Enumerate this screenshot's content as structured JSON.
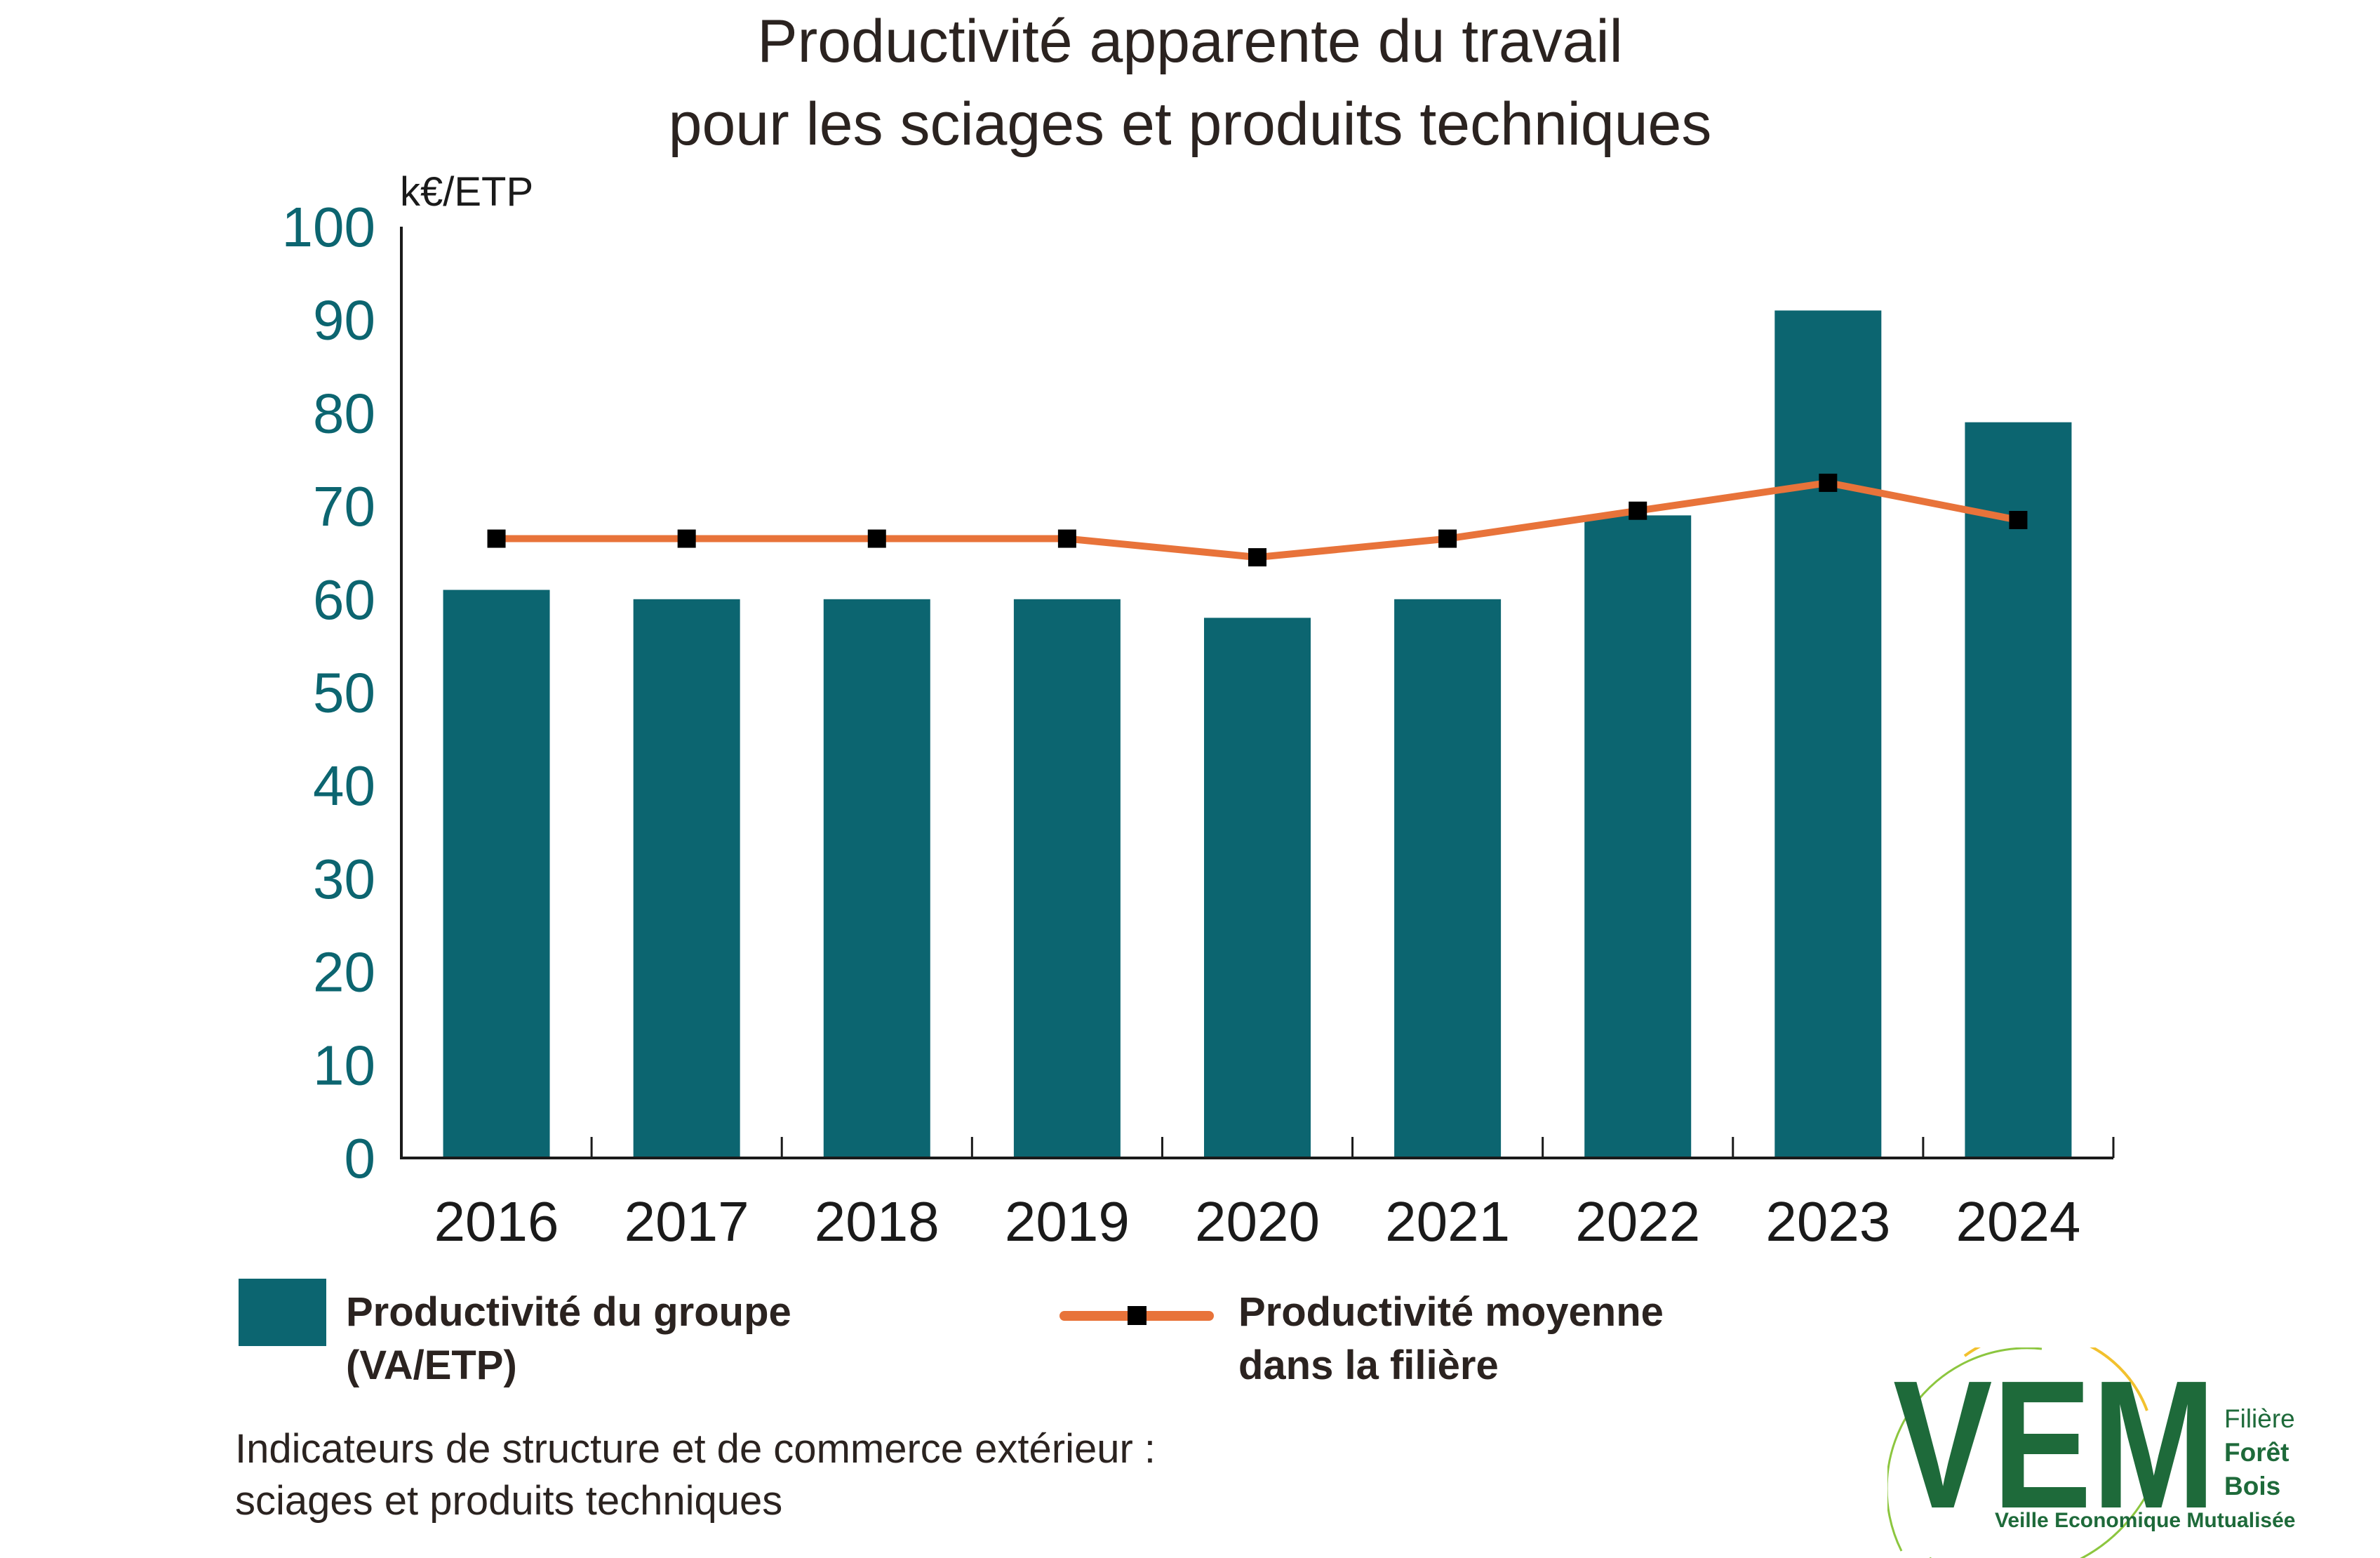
{
  "chart_data": {
    "type": "bar",
    "title": [
      "Productivité apparente du travail",
      "pour les sciages et produits techniques"
    ],
    "ylabel": "k€/ETP",
    "ylim": [
      0,
      100
    ],
    "yticks": [
      "0",
      "10",
      "20",
      "30",
      "40",
      "50",
      "60",
      "70",
      "80",
      "90",
      "100"
    ],
    "categories": [
      "2016",
      "2017",
      "2018",
      "2019",
      "2020",
      "2021",
      "2022",
      "2023",
      "2024"
    ],
    "series": [
      {
        "name": "Productivité du groupe (VA/ETP)",
        "type": "bar",
        "values": [
          61,
          60,
          60,
          60,
          58,
          60,
          69,
          91,
          79
        ]
      },
      {
        "name": "Productivité moyenne dans la filière",
        "type": "line",
        "values": [
          66.5,
          66.5,
          66.5,
          66.5,
          64.5,
          66.5,
          69.5,
          72.5,
          68.5
        ]
      }
    ],
    "grid": false,
    "legend_position": "bottom"
  },
  "legend": {
    "bar_label": [
      "Productivité du groupe",
      "(VA/ETP)"
    ],
    "line_label": [
      "Productivité moyenne",
      "dans la filière"
    ]
  },
  "source": [
    "Indicateurs de structure et de commerce extérieur :",
    "sciages et produits techniques"
  ],
  "logo": {
    "letters": "VEM",
    "side": [
      "Filière",
      "Forêt",
      "Bois"
    ],
    "bottom": "Veille Economique Mutualisée"
  },
  "colors": {
    "bar": "#0c6570",
    "line": "#e8733a",
    "marker": "#000000",
    "tick_label": "#0c6570",
    "logo_green": "#1e6a3a",
    "logo_arc": "#f2c12e"
  }
}
